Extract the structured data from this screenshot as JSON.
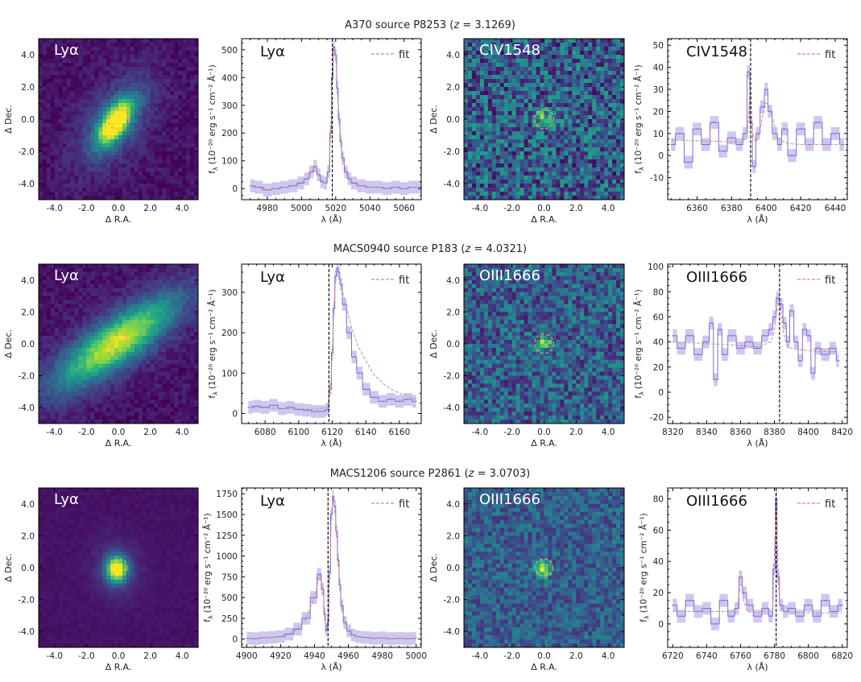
{
  "chart_data": {
    "axis_labels": {
      "ra": "Δ R.A.",
      "dec": "Δ Dec.",
      "wavelength": "λ (Å)",
      "flux": "f",
      "flux_sub": "λ",
      "flux_units": "(10⁻²⁰ erg s⁻¹ cm⁻² Å⁻¹)"
    },
    "legend_label": "fit",
    "image_ticks": [
      "-4.0",
      "-2.0",
      "0.0",
      "2.0",
      "4.0"
    ],
    "image_tick_values": [
      -4,
      -2,
      0,
      2,
      4
    ],
    "image_range": [
      -5,
      5
    ],
    "rows": [
      {
        "title_name": "A370 source P8253 (",
        "title_z_var": "z",
        "title_z_value": " = 3.1269)",
        "panels": [
          {
            "type": "heatmap",
            "label": "Lyα",
            "blob": {
              "cx": -0.2,
              "cy": -0.2,
              "sx": 0.5,
              "sy": 1.1,
              "angle": -35,
              "amp": 1.0
            },
            "halo": {
              "amp": 0.3,
              "sx": 1.2,
              "sy": 2.2
            },
            "noise": 0.12,
            "circle": {
              "x": 0.0,
              "y": 0.0,
              "r": 0.65
            }
          },
          {
            "type": "line",
            "label": "Lyα",
            "xlim": [
              4965,
              5070
            ],
            "ylim": [
              -40,
              540
            ],
            "xticks": [
              4980,
              5000,
              5020,
              5040,
              5060
            ],
            "yticks": [
              0,
              100,
              200,
              300,
              400,
              500
            ],
            "vline": 5018,
            "data": {
              "x": [
                4970,
                4975,
                4980,
                4985,
                4990,
                4995,
                5000,
                5003,
                5006,
                5008,
                5010,
                5012,
                5014,
                5016,
                5017,
                5018,
                5019,
                5020,
                5021,
                5022,
                5023,
                5024,
                5026,
                5028,
                5030,
                5035,
                5040,
                5045,
                5050,
                5055,
                5060,
                5065,
                5070
              ],
              "y": [
                10,
                5,
                -5,
                0,
                5,
                10,
                20,
                35,
                60,
                80,
                50,
                25,
                20,
                60,
                200,
                400,
                510,
                480,
                360,
                250,
                170,
                110,
                60,
                35,
                20,
                10,
                5,
                5,
                0,
                5,
                0,
                5,
                5
              ]
            }
          },
          {
            "type": "heatmap",
            "label": "CIV1548",
            "blob": {
              "cx": 0.0,
              "cy": 0.0,
              "sx": 0.4,
              "sy": 0.4,
              "angle": 0,
              "amp": 0.35
            },
            "halo": {
              "amp": 0.0,
              "sx": 1,
              "sy": 1
            },
            "noise": 0.55,
            "circle": {
              "x": 0.0,
              "y": 0.0,
              "r": 0.6
            }
          },
          {
            "type": "line",
            "label": "CIV1548",
            "xlim": [
              6343,
              6447
            ],
            "ylim": [
              -20,
              53
            ],
            "xticks": [
              6360,
              6380,
              6400,
              6420,
              6440
            ],
            "yticks": [
              -10,
              0,
              10,
              20,
              30,
              40,
              50
            ],
            "vline": 6391,
            "data": {
              "x": [
                6345,
                6350,
                6355,
                6360,
                6365,
                6370,
                6375,
                6380,
                6385,
                6388,
                6390,
                6391,
                6393,
                6395,
                6398,
                6400,
                6402,
                6405,
                6408,
                6410,
                6415,
                6420,
                6425,
                6430,
                6435,
                6440,
                6445
              ],
              "y": [
                5,
                10,
                -3,
                12,
                5,
                15,
                2,
                8,
                5,
                10,
                38,
                15,
                -5,
                10,
                22,
                30,
                20,
                10,
                5,
                12,
                0,
                12,
                5,
                15,
                5,
                10,
                5
              ]
            },
            "fit": {
              "x": [
                6345,
                6370,
                6385,
                6389,
                6390,
                6391,
                6392,
                6394,
                6396,
                6398,
                6400,
                6402,
                6404,
                6406,
                6408,
                6412,
                6420,
                6445
              ],
              "y": [
                7,
                6.5,
                6,
                8,
                20,
                35,
                10,
                6,
                10,
                18,
                24,
                22,
                16,
                10,
                7,
                5.5,
                5,
                5
              ]
            }
          }
        ]
      },
      {
        "title_name": "MACS0940 source P183 (",
        "title_z_var": "z",
        "title_z_value": " = 4.0321)",
        "panels": [
          {
            "type": "heatmap",
            "label": "Lyα",
            "blob": {
              "cx": -0.1,
              "cy": 0.1,
              "sx": 0.9,
              "sy": 3.0,
              "angle": -55,
              "amp": 0.7
            },
            "halo": {
              "amp": 0.2,
              "sx": 1.4,
              "sy": 4.0
            },
            "noise": 0.12,
            "circle": {
              "x": 0.0,
              "y": 0.0,
              "r": 0.6
            }
          },
          {
            "type": "line",
            "label": "Lyα",
            "xlim": [
              6066,
              6173
            ],
            "ylim": [
              -25,
              370
            ],
            "xticks": [
              6080,
              6100,
              6120,
              6140,
              6160
            ],
            "yticks": [
              0,
              100,
              200,
              300
            ],
            "vline": 6118,
            "data": {
              "x": [
                6070,
                6075,
                6080,
                6085,
                6090,
                6095,
                6100,
                6105,
                6110,
                6115,
                6117,
                6119,
                6120,
                6121,
                6122,
                6123,
                6124,
                6125,
                6127,
                6130,
                6133,
                6136,
                6140,
                6145,
                6150,
                6155,
                6160,
                6165,
                6170
              ],
              "y": [
                15,
                18,
                15,
                20,
                12,
                15,
                10,
                8,
                5,
                5,
                10,
                60,
                150,
                260,
                340,
                360,
                350,
                320,
                270,
                200,
                140,
                100,
                60,
                40,
                30,
                35,
                30,
                35,
                30
              ]
            },
            "fit": {
              "x": [
                6070,
                6110,
                6117,
                6119,
                6120,
                6121,
                6122,
                6123,
                6125,
                6128,
                6131,
                6135,
                6140,
                6145,
                6150,
                6155,
                6160,
                6170
              ],
              "y": [
                15,
                10,
                15,
                60,
                150,
                260,
                335,
                345,
                320,
                270,
                220,
                170,
                130,
                95,
                75,
                60,
                50,
                35
              ]
            }
          },
          {
            "type": "heatmap",
            "label": "OIII1666",
            "blob": {
              "cx": 0.0,
              "cy": 0.0,
              "sx": 0.35,
              "sy": 0.25,
              "angle": 0,
              "amp": 0.55
            },
            "halo": {
              "amp": 0.0,
              "sx": 1,
              "sy": 1
            },
            "noise": 0.45,
            "circle": {
              "x": 0.0,
              "y": 0.0,
              "r": 0.6
            }
          },
          {
            "type": "line",
            "label": "OIII1666",
            "xlim": [
              8317,
              8423
            ],
            "ylim": [
              -25,
              102
            ],
            "xticks": [
              8320,
              8340,
              8360,
              8380,
              8400,
              8420
            ],
            "yticks": [
              -20,
              0,
              20,
              40,
              60,
              80,
              100
            ],
            "vline": 8383,
            "data": {
              "x": [
                8320,
                8325,
                8330,
                8335,
                8340,
                8343,
                8345,
                8348,
                8350,
                8355,
                8360,
                8365,
                8370,
                8375,
                8378,
                8380,
                8382,
                8384,
                8386,
                8388,
                8390,
                8393,
                8395,
                8398,
                8400,
                8403,
                8405,
                8410,
                8415,
                8418
              ],
              "y": [
                45,
                35,
                45,
                30,
                40,
                55,
                10,
                50,
                30,
                45,
                35,
                40,
                35,
                45,
                50,
                60,
                75,
                70,
                55,
                40,
                65,
                40,
                25,
                50,
                45,
                15,
                35,
                30,
                35,
                25
              ]
            },
            "fit": {
              "x": [
                8320,
                8350,
                8370,
                8378,
                8380,
                8381,
                8382,
                8383,
                8384,
                8385,
                8387,
                8390,
                8400,
                8418
              ],
              "y": [
                40,
                38,
                36,
                40,
                50,
                62,
                70,
                72,
                65,
                50,
                38,
                35,
                33,
                32
              ]
            }
          }
        ]
      },
      {
        "title_name": "MACS1206 source P2861 (",
        "title_z_var": "z",
        "title_z_value": " = 3.0703)",
        "panels": [
          {
            "type": "heatmap",
            "label": "Lyα",
            "blob": {
              "cx": -0.1,
              "cy": -0.1,
              "sx": 0.45,
              "sy": 0.55,
              "angle": 0,
              "amp": 1.0
            },
            "halo": {
              "amp": 0.15,
              "sx": 1.0,
              "sy": 1.2
            },
            "noise": 0.04,
            "circle": {
              "x": 0.0,
              "y": 0.0,
              "r": 0.55
            }
          },
          {
            "type": "line",
            "label": "Lyα",
            "xlim": [
              4897,
              5003
            ],
            "ylim": [
              -100,
              1820
            ],
            "xticks": [
              4900,
              4920,
              4940,
              4960,
              4980,
              5000
            ],
            "yticks": [
              0,
              250,
              500,
              750,
              1000,
              1250,
              1500,
              1750
            ],
            "vline": 4948,
            "data": {
              "x": [
                4900,
                4905,
                4910,
                4915,
                4920,
                4925,
                4930,
                4935,
                4940,
                4943,
                4945,
                4946,
                4947,
                4948,
                4949,
                4950,
                4951,
                4952,
                4953,
                4954,
                4955,
                4956,
                4958,
                4960,
                4963,
                4965,
                4970,
                4975,
                4980,
                4985,
                4990,
                4995,
                5000
              ],
              "y": [
                10,
                5,
                15,
                20,
                30,
                60,
                120,
                250,
                500,
                780,
                600,
                300,
                100,
                200,
                800,
                1500,
                1720,
                1600,
                1300,
                950,
                650,
                400,
                200,
                100,
                50,
                30,
                20,
                10,
                15,
                5,
                10,
                5,
                10
              ]
            }
          },
          {
            "type": "heatmap",
            "label": "OIII1666",
            "blob": {
              "cx": -0.1,
              "cy": -0.1,
              "sx": 0.3,
              "sy": 0.35,
              "angle": 0,
              "amp": 0.7
            },
            "halo": {
              "amp": 0.0,
              "sx": 1,
              "sy": 1
            },
            "noise": 0.32,
            "circle": {
              "x": 0.0,
              "y": 0.0,
              "r": 0.55
            }
          },
          {
            "type": "line",
            "label": "OIII1666",
            "xlim": [
              6717,
              6823
            ],
            "ylim": [
              -15,
              87
            ],
            "xticks": [
              6720,
              6740,
              6760,
              6780,
              6800,
              6820
            ],
            "yticks": [
              0,
              20,
              40,
              60,
              80
            ],
            "vline": 6781,
            "data": {
              "x": [
                6720,
                6725,
                6730,
                6735,
                6740,
                6745,
                6750,
                6755,
                6758,
                6760,
                6762,
                6765,
                6770,
                6775,
                6778,
                6780,
                6781,
                6782,
                6784,
                6786,
                6790,
                6795,
                6800,
                6805,
                6810,
                6815,
                6820
              ],
              "y": [
                12,
                5,
                15,
                8,
                10,
                0,
                15,
                5,
                10,
                30,
                20,
                12,
                5,
                10,
                5,
                35,
                80,
                30,
                12,
                8,
                10,
                5,
                12,
                5,
                15,
                8,
                12
              ]
            },
            "fit": {
              "x": [
                6720,
                6755,
                6758,
                6759,
                6760,
                6761,
                6762,
                6764,
                6770,
                6779,
                6780,
                6781,
                6782,
                6783,
                6785,
                6800,
                6820
              ],
              "y": [
                8,
                8,
                10,
                18,
                26,
                24,
                14,
                8,
                7,
                10,
                45,
                78,
                40,
                12,
                8,
                7,
                7
              ]
            }
          }
        ]
      }
    ],
    "colors": {
      "line": "#7b6fd0",
      "line_band": "#b9b1ea",
      "fit": "#d58b8b",
      "circle": "#f0a064",
      "vline": "#000000",
      "image_label": "#ffffff",
      "line_label": "#111111",
      "colormap": [
        "#440154",
        "#482878",
        "#3e4989",
        "#31688e",
        "#26828e",
        "#1f9e89",
        "#35b779",
        "#6ece58",
        "#b5de2b",
        "#fde725"
      ]
    }
  }
}
